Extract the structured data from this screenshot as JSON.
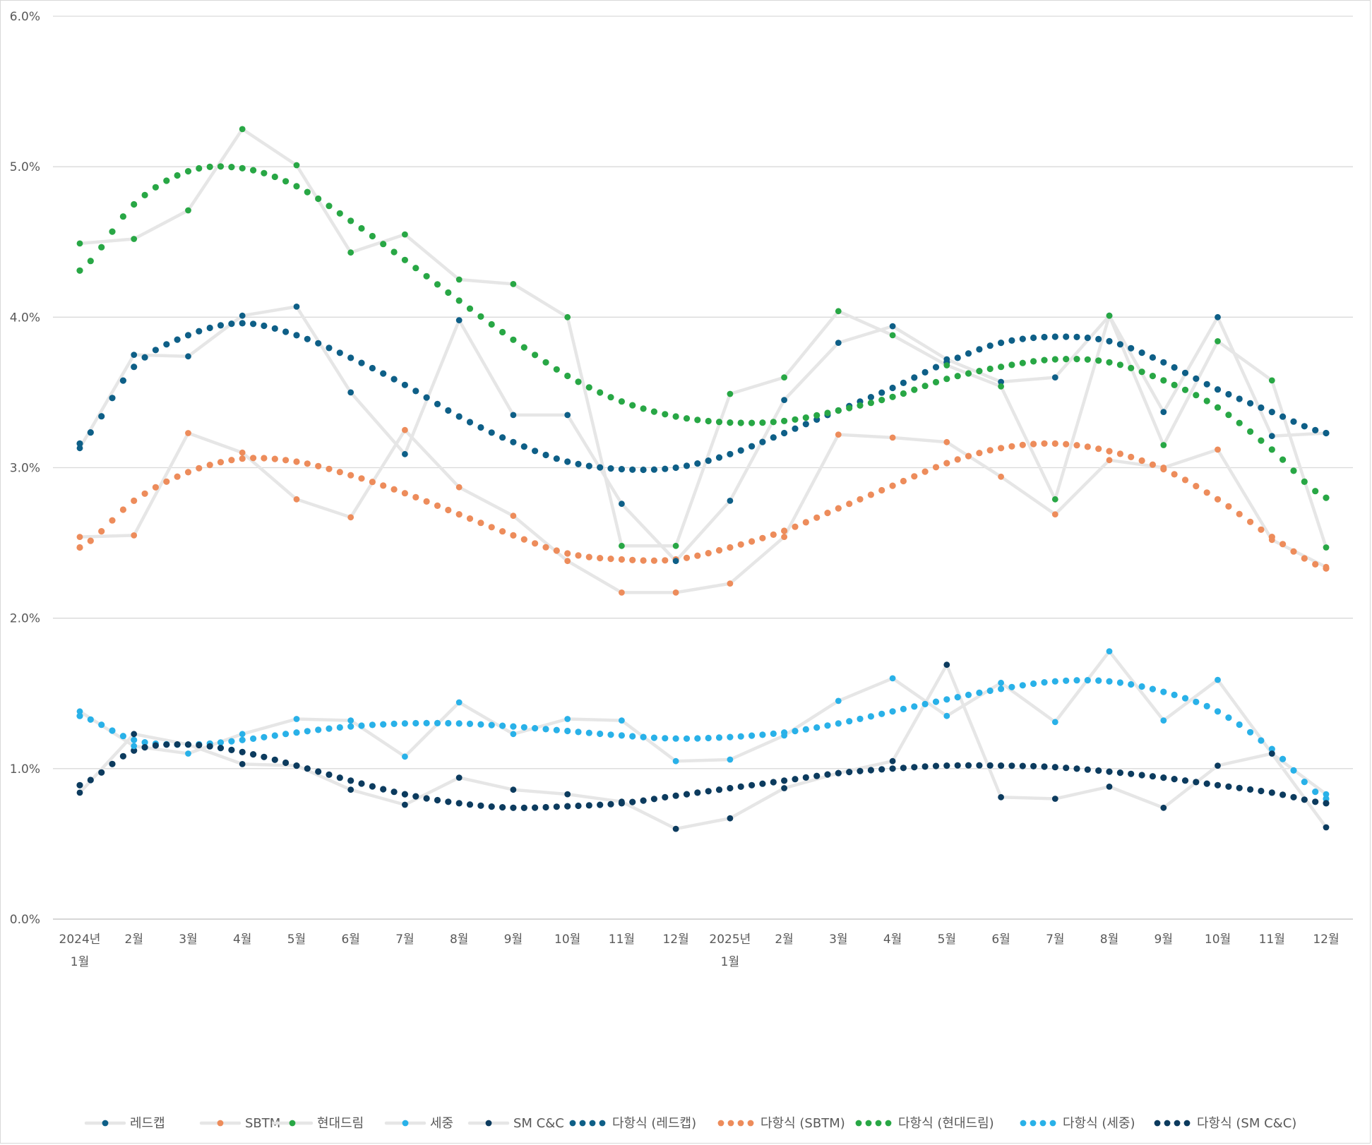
{
  "chart_data": {
    "type": "line",
    "title": "",
    "xlabel": "",
    "ylabel": "",
    "ylim": [
      0,
      6
    ],
    "y_ticks": [
      "0.0%",
      "1.0%",
      "2.0%",
      "3.0%",
      "4.0%",
      "5.0%",
      "6.0%"
    ],
    "grid": true,
    "legend_position": "bottom",
    "categories": [
      [
        "2024년",
        "1월"
      ],
      [
        "2월"
      ],
      [
        "3월"
      ],
      [
        "4월"
      ],
      [
        "5월"
      ],
      [
        "6월"
      ],
      [
        "7월"
      ],
      [
        "8월"
      ],
      [
        "9월"
      ],
      [
        "10월"
      ],
      [
        "11월"
      ],
      [
        "12월"
      ],
      [
        "2025년",
        "1월"
      ],
      [
        "2월"
      ],
      [
        "3월"
      ],
      [
        "4월"
      ],
      [
        "5월"
      ],
      [
        "6월"
      ],
      [
        "7월"
      ],
      [
        "8월"
      ],
      [
        "9월"
      ],
      [
        "10월"
      ],
      [
        "11월"
      ],
      [
        "12월"
      ]
    ],
    "series": [
      {
        "name": "레드캡",
        "color": "#0e5f87",
        "values": [
          3.13,
          3.75,
          3.74,
          4.01,
          4.07,
          3.5,
          3.09,
          3.98,
          3.35,
          3.35,
          2.76,
          2.38,
          2.78,
          3.45,
          3.83,
          3.94,
          3.72,
          3.57,
          3.6,
          4.01,
          3.37,
          4.0,
          3.21,
          3.23
        ],
        "trend_name": "다항식 (레드캡)",
        "trend_values": [
          3.16,
          3.67,
          3.88,
          3.96,
          3.88,
          3.73,
          3.55,
          3.34,
          3.17,
          3.04,
          2.99,
          3.0,
          3.09,
          3.23,
          3.38,
          3.53,
          3.7,
          3.83,
          3.87,
          3.84,
          3.7,
          3.52,
          3.37,
          3.23
        ]
      },
      {
        "name": "SBTM",
        "color": "#ed8c5b",
        "values": [
          2.54,
          2.55,
          3.23,
          3.1,
          2.79,
          2.67,
          3.25,
          2.87,
          2.68,
          2.38,
          2.17,
          2.17,
          2.23,
          2.54,
          3.22,
          3.2,
          3.17,
          2.94,
          2.69,
          3.05,
          3.0,
          3.12,
          2.52,
          2.34
        ],
        "trend_name": "다항식 (SBTM)",
        "trend_values": [
          2.47,
          2.78,
          2.97,
          3.06,
          3.04,
          2.95,
          2.83,
          2.69,
          2.55,
          2.43,
          2.39,
          2.39,
          2.47,
          2.58,
          2.73,
          2.88,
          3.03,
          3.13,
          3.16,
          3.11,
          2.99,
          2.79,
          2.54,
          2.33
        ]
      },
      {
        "name": "현대드림",
        "color": "#28a745",
        "values": [
          4.49,
          4.52,
          4.71,
          5.25,
          5.01,
          4.43,
          4.55,
          4.25,
          4.22,
          4.0,
          2.48,
          2.48,
          3.49,
          3.6,
          4.04,
          3.88,
          3.68,
          3.54,
          2.79,
          4.01,
          3.15,
          3.84,
          3.58,
          2.47
        ],
        "trend_name": "다항식 (현대드림)",
        "trend_values": [
          4.31,
          4.75,
          4.97,
          4.99,
          4.87,
          4.64,
          4.38,
          4.11,
          3.85,
          3.61,
          3.44,
          3.34,
          3.3,
          3.31,
          3.38,
          3.47,
          3.59,
          3.67,
          3.72,
          3.7,
          3.58,
          3.4,
          3.12,
          2.8
        ]
      },
      {
        "name": "세중",
        "color": "#29b1e8",
        "values": [
          1.38,
          1.15,
          1.1,
          1.23,
          1.33,
          1.32,
          1.08,
          1.44,
          1.23,
          1.33,
          1.32,
          1.05,
          1.06,
          1.22,
          1.45,
          1.6,
          1.35,
          1.57,
          1.31,
          1.78,
          1.32,
          1.59,
          1.1,
          0.83
        ],
        "trend_name": "다항식 (세중)",
        "trend_values": [
          1.35,
          1.19,
          1.16,
          1.19,
          1.24,
          1.28,
          1.3,
          1.3,
          1.28,
          1.25,
          1.22,
          1.2,
          1.21,
          1.24,
          1.3,
          1.38,
          1.46,
          1.53,
          1.58,
          1.58,
          1.51,
          1.38,
          1.13,
          0.8
        ]
      },
      {
        "name": "SM C&C",
        "color": "#0c3b5e",
        "values": [
          0.84,
          1.23,
          1.16,
          1.03,
          1.02,
          0.86,
          0.76,
          0.94,
          0.86,
          0.83,
          0.78,
          0.6,
          0.67,
          0.87,
          0.97,
          1.05,
          1.69,
          0.81,
          0.8,
          0.88,
          0.74,
          1.02,
          1.1,
          0.61
        ],
        "trend_name": "다항식 (SM C&C)",
        "trend_values": [
          0.89,
          1.12,
          1.16,
          1.11,
          1.02,
          0.92,
          0.83,
          0.77,
          0.74,
          0.75,
          0.77,
          0.82,
          0.87,
          0.92,
          0.97,
          1.0,
          1.02,
          1.02,
          1.01,
          0.98,
          0.94,
          0.89,
          0.84,
          0.77
        ]
      }
    ]
  }
}
